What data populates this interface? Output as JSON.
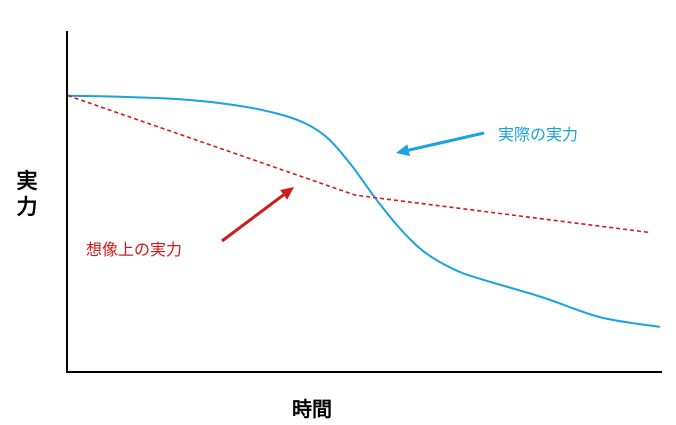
{
  "chart_data": {
    "type": "line",
    "xlabel": "時間",
    "ylabel_chars": [
      "実",
      "力"
    ],
    "grid": false,
    "legend": "none",
    "ticks": "none",
    "xlim": [
      0,
      100
    ],
    "ylim": [
      0,
      100
    ],
    "series": [
      {
        "name": "実際の実力",
        "color": "#1aa3dd",
        "style": "solid",
        "x": [
          0,
          10,
          20,
          28,
          35,
          40,
          44,
          48,
          52,
          56,
          60,
          65,
          70,
          80,
          90,
          100
        ],
        "y": [
          81.9,
          81.5,
          80.7,
          79.1,
          76.7,
          73.7,
          69.0,
          60.8,
          51.1,
          42.4,
          35.5,
          30.2,
          27.0,
          21.8,
          15.7,
          12.9
        ]
      },
      {
        "name": "想像上の実力",
        "color": "#d11a1a",
        "style": "dashed",
        "x": [
          0,
          48.5,
          98
        ],
        "y": [
          81.9,
          52.2,
          41.1
        ]
      }
    ],
    "annotations": [
      {
        "text": "実際の実力",
        "series": 0,
        "color": "#1aa3dd"
      },
      {
        "text": "想像上の実力",
        "series": 1,
        "color": "#d11a1a"
      }
    ]
  }
}
